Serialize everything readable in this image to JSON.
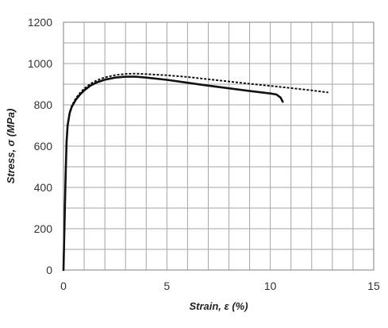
{
  "chart_data": {
    "type": "line",
    "title": "",
    "xlabel": "Strain, ε (%)",
    "ylabel": "Stress, σ (MPa)",
    "xlim": [
      0,
      15
    ],
    "ylim": [
      0,
      1200
    ],
    "x_ticks": [
      0,
      5,
      10,
      15
    ],
    "y_ticks": [
      0,
      200,
      400,
      600,
      800,
      1000,
      1200
    ],
    "x_grid_step": 1,
    "y_grid_step": 100,
    "grid": true,
    "legend": "none",
    "series": [
      {
        "style": "solid",
        "color": "#111111",
        "x": [
          0,
          0.05,
          0.1,
          0.15,
          0.2,
          0.3,
          0.4,
          0.6,
          0.8,
          1.0,
          1.3,
          1.6,
          2.0,
          2.5,
          3.0,
          3.5,
          4.0,
          5.0,
          6.0,
          7.0,
          8.0,
          9.0,
          10.0,
          10.3,
          10.5,
          10.6
        ],
        "y": [
          0,
          220,
          440,
          620,
          700,
          760,
          790,
          825,
          850,
          870,
          893,
          908,
          922,
          932,
          936,
          936,
          932,
          921,
          907,
          893,
          880,
          867,
          855,
          850,
          835,
          815
        ]
      },
      {
        "style": "dashed",
        "color": "#111111",
        "x": [
          0,
          0.05,
          0.1,
          0.15,
          0.2,
          0.3,
          0.4,
          0.6,
          0.8,
          1.0,
          1.3,
          1.6,
          2.0,
          2.5,
          3.0,
          3.5,
          4.0,
          5.0,
          6.0,
          7.0,
          8.0,
          9.0,
          10.0,
          11.0,
          12.0,
          12.8
        ],
        "y": [
          0,
          220,
          440,
          620,
          700,
          765,
          795,
          832,
          858,
          878,
          902,
          918,
          933,
          944,
          950,
          951,
          949,
          943,
          935,
          924,
          913,
          902,
          892,
          881,
          870,
          860
        ]
      }
    ]
  }
}
